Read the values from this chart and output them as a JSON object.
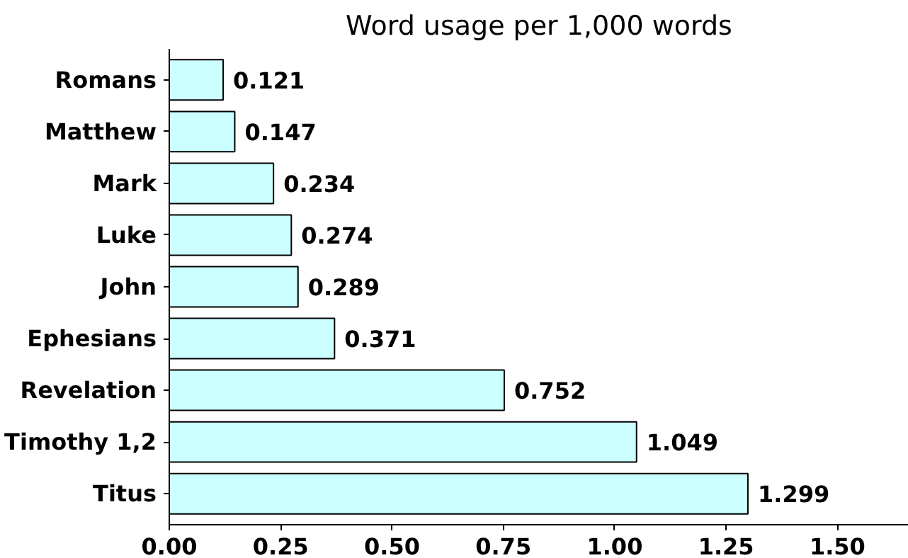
{
  "chart_data": {
    "type": "bar",
    "orientation": "horizontal",
    "title": "Word usage per 1,000 words",
    "categories": [
      "Romans",
      "Matthew",
      "Mark",
      "Luke",
      "John",
      "Ephesians",
      "Revelation",
      "Timothy 1,2",
      "Titus"
    ],
    "values": [
      0.121,
      0.147,
      0.234,
      0.274,
      0.289,
      0.371,
      0.752,
      1.049,
      1.299
    ],
    "color": "#ccffff",
    "data_labels": true,
    "grid": false,
    "xlim": [
      0,
      1.66
    ],
    "xticks": [
      {
        "value": 0,
        "label": "0.00"
      },
      {
        "value": 0.25,
        "label": "0.25"
      },
      {
        "value": 0.5,
        "label": "0.50"
      },
      {
        "value": 0.75,
        "label": "0.75"
      },
      {
        "value": 1.0,
        "label": "1.00"
      },
      {
        "value": 1.25,
        "label": "1.25"
      },
      {
        "value": 1.5,
        "label": "1.50"
      }
    ]
  }
}
